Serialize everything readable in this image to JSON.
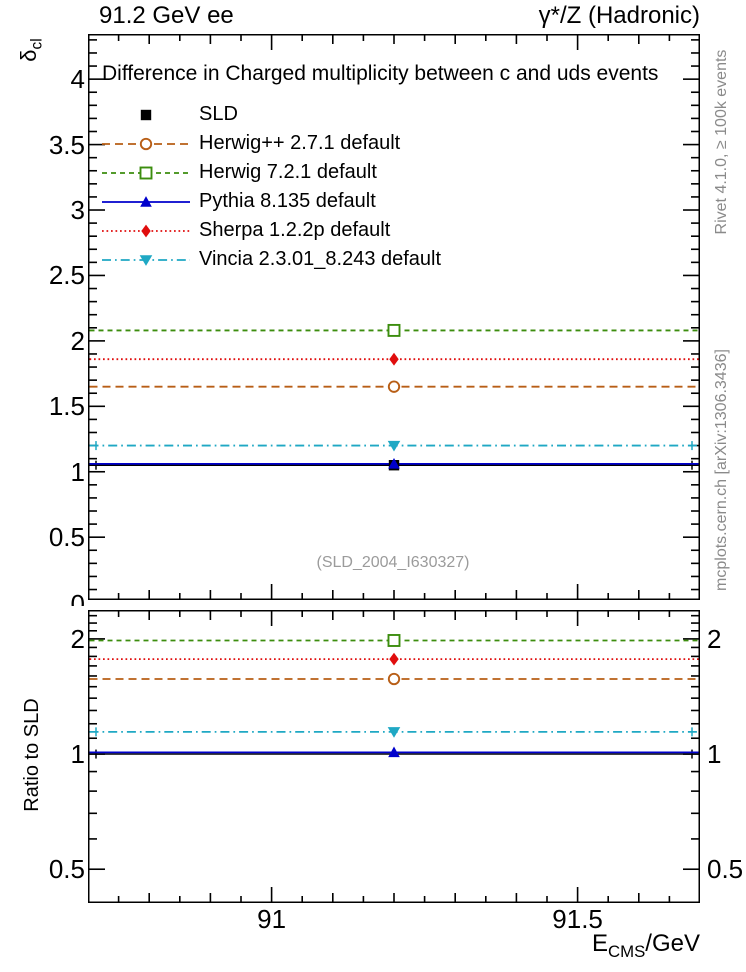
{
  "header": {
    "left": "91.2 GeV ee",
    "right": "γ*/Z (Hadronic)"
  },
  "main_panel": {
    "title": "Difference in Charged multiplicity between c and uds events",
    "ylabel_base": "δ",
    "ylabel_sub": "cl",
    "watermark": "(SLD_2004_I630327)"
  },
  "ratio_panel": {
    "ylabel": "Ratio to SLD"
  },
  "xaxis": {
    "label_base": "E",
    "label_sub": "CMS",
    "label_suffix": "/GeV"
  },
  "side_notes": {
    "top": "Rivet 4.1.0, ≥ 100k events",
    "bottom": "mcplots.cern.ch [arXiv:1306.3436]"
  },
  "chart_data": {
    "type": "line",
    "title": "Difference in Charged multiplicity between c and uds events",
    "xlabel": "E_CMS/GeV",
    "ylabel": "δ_cl",
    "x_point": 91.2,
    "xlim": [
      90.7,
      91.7
    ],
    "xticks": [
      91,
      91.5
    ],
    "main_axis": {
      "scale": "linear",
      "ylim": [
        0.02,
        4.345
      ],
      "yticks": [
        0.5,
        1,
        1.5,
        2,
        2.5,
        3,
        3.5,
        4
      ],
      "clipped_zero_label": "0"
    },
    "ratio_axis": {
      "scale": "log",
      "ylim": [
        0.408,
        2.38
      ],
      "yticks": [
        0.5,
        1,
        2
      ],
      "minor_ticks": [
        0.6,
        0.7,
        0.8,
        0.9,
        1.1,
        1.2,
        1.3,
        1.4,
        1.5,
        1.6,
        1.7,
        1.8,
        1.9,
        2.1,
        2.2,
        2.3
      ]
    },
    "legend_position": "top-left",
    "series": [
      {
        "name": "SLD",
        "value": 1.05,
        "ratio": 1.0,
        "color": "#000000",
        "line": "solid",
        "marker": "square-filled",
        "is_data": true
      },
      {
        "name": "Herwig++ 2.7.1 default",
        "value": 1.65,
        "ratio": 1.571,
        "color": "#b85e16",
        "line": "dashed",
        "marker": "circle-open"
      },
      {
        "name": "Herwig 7.2.1 default",
        "value": 2.08,
        "ratio": 1.981,
        "color": "#3c8d0e",
        "line": "dashed-small",
        "marker": "square-open"
      },
      {
        "name": "Pythia 8.135 default",
        "value": 1.06,
        "ratio": 1.01,
        "color": "#0000cc",
        "line": "solid",
        "marker": "triangle-up-filled"
      },
      {
        "name": "Sherpa 1.2.2p default",
        "value": 1.86,
        "ratio": 1.771,
        "color": "#e00d0d",
        "line": "dotted",
        "marker": "diamond-filled"
      },
      {
        "name": "Vincia 2.3.01_8.243 default",
        "value": 1.2,
        "ratio": 1.143,
        "color": "#1fa8c4",
        "line": "dashdot",
        "marker": "triangle-down-filled",
        "caps": true
      }
    ]
  }
}
